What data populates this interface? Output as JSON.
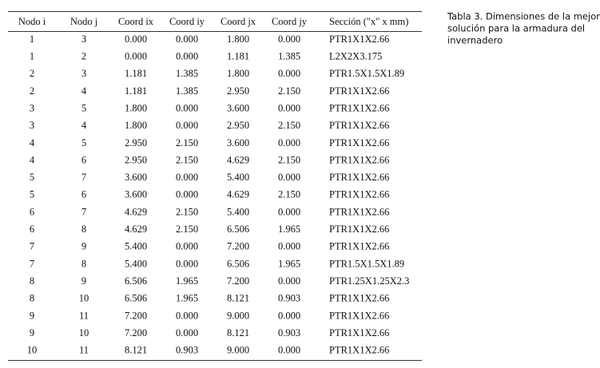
{
  "table": {
    "headers": [
      "Nodo i",
      "Nodo j",
      "Coord ix",
      "Coord iy",
      "Coord jx",
      "Coord jy",
      "Sección (\"x\" x mm)"
    ],
    "rows": [
      [
        "1",
        "3",
        "0.000",
        "0.000",
        "1.800",
        "0.000",
        "PTR1X1X2.66"
      ],
      [
        "1",
        "2",
        "0.000",
        "0.000",
        "1.181",
        "1.385",
        "L2X2X3.175"
      ],
      [
        "2",
        "3",
        "1.181",
        "1.385",
        "1.800",
        "0.000",
        "PTR1.5X1.5X1.89"
      ],
      [
        "2",
        "4",
        "1.181",
        "1.385",
        "2.950",
        "2.150",
        "PTR1X1X2.66"
      ],
      [
        "3",
        "5",
        "1.800",
        "0.000",
        "3.600",
        "0.000",
        "PTR1X1X2.66"
      ],
      [
        "3",
        "4",
        "1.800",
        "0.000",
        "2.950",
        "2.150",
        "PTR1X1X2.66"
      ],
      [
        "4",
        "5",
        "2.950",
        "2.150",
        "3.600",
        "0.000",
        "PTR1X1X2.66"
      ],
      [
        "4",
        "6",
        "2.950",
        "2.150",
        "4.629",
        "2.150",
        "PTR1X1X2.66"
      ],
      [
        "5",
        "7",
        "3.600",
        "0.000",
        "5.400",
        "0.000",
        "PTR1X1X2.66"
      ],
      [
        "5",
        "6",
        "3.600",
        "0.000",
        "4.629",
        "2.150",
        "PTR1X1X2.66"
      ],
      [
        "6",
        "7",
        "4.629",
        "2.150",
        "5.400",
        "0.000",
        "PTR1X1X2.66"
      ],
      [
        "6",
        "8",
        "4.629",
        "2.150",
        "6.506",
        "1.965",
        "PTR1X1X2.66"
      ],
      [
        "7",
        "9",
        "5.400",
        "0.000",
        "7.200",
        "0.000",
        "PTR1X1X2.66"
      ],
      [
        "7",
        "8",
        "5.400",
        "0.000",
        "6.506",
        "1.965",
        "PTR1.5X1.5X1.89"
      ],
      [
        "8",
        "9",
        "6.506",
        "1.965",
        "7.200",
        "0.000",
        "PTR1.25X1.25X2.3"
      ],
      [
        "8",
        "10",
        "6.506",
        "1.965",
        "8.121",
        "0.903",
        "PTR1X1X2.66"
      ],
      [
        "9",
        "11",
        "7.200",
        "0.000",
        "9.000",
        "0.000",
        "PTR1X1X2.66"
      ],
      [
        "9",
        "10",
        "7.200",
        "0.000",
        "8.121",
        "0.903",
        "PTR1X1X2.66"
      ],
      [
        "10",
        "11",
        "8.121",
        "0.903",
        "9.000",
        "0.000",
        "PTR1X1X2.66"
      ]
    ]
  },
  "caption": [
    "Tabla 3. Dimensiones de la mejor",
    "solución para la armadura del",
    "invernadero"
  ]
}
